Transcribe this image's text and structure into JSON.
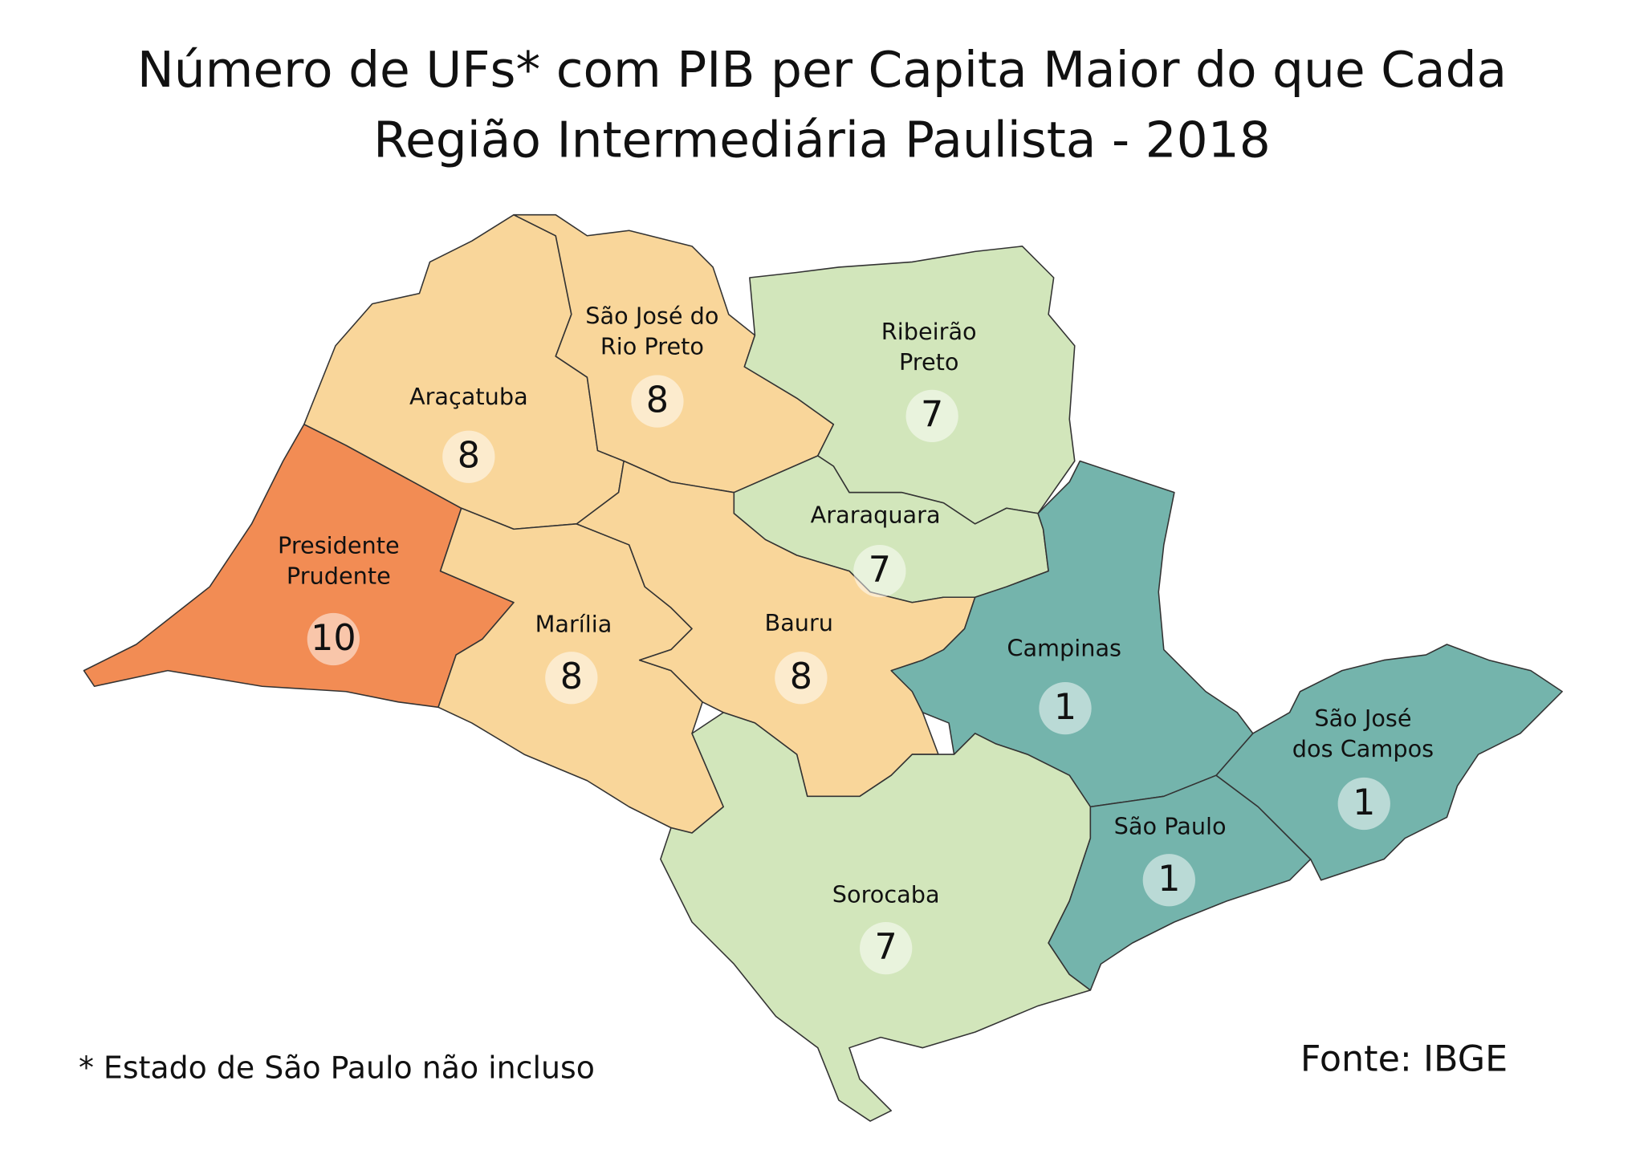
{
  "title": [
    "Número de UFs* com PIB per Capita Maior do que Cada",
    "Região Intermediária Paulista - 2018"
  ],
  "regions": [
    {
      "name": [
        "Presidente",
        "Prudente"
      ],
      "value": 10,
      "color": "#f28c54"
    },
    {
      "name": [
        "Araçatuba"
      ],
      "value": 8,
      "color": "#f9d69a"
    },
    {
      "name": [
        "São José do",
        "Rio Preto"
      ],
      "value": 8,
      "color": "#f9d69a"
    },
    {
      "name": [
        "Ribeirão",
        "Preto"
      ],
      "value": 7,
      "color": "#d2e6bb"
    },
    {
      "name": [
        "Araraquara"
      ],
      "value": 7,
      "color": "#d2e6bb"
    },
    {
      "name": [
        "Marília"
      ],
      "value": 8,
      "color": "#f9d69a"
    },
    {
      "name": [
        "Bauru"
      ],
      "value": 8,
      "color": "#f9d69a"
    },
    {
      "name": [
        "Campinas"
      ],
      "value": 1,
      "color": "#74b4ac"
    },
    {
      "name": [
        "Sorocaba"
      ],
      "value": 7,
      "color": "#d2e6bb"
    },
    {
      "name": [
        "São Paulo"
      ],
      "value": 1,
      "color": "#74b4ac"
    },
    {
      "name": [
        "São José",
        "dos Campos"
      ],
      "value": 1,
      "color": "#74b4ac"
    }
  ],
  "footnote": "* Estado de São Paulo não incluso",
  "source": "Fonte: IBGE"
}
